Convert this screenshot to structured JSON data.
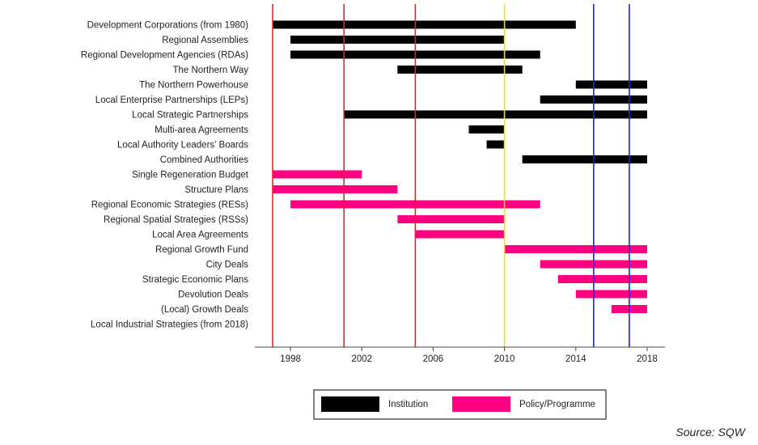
{
  "chart_data": {
    "type": "gantt",
    "xlim": [
      1996,
      2019
    ],
    "x_ticks": [
      1998,
      2002,
      2006,
      2010,
      2014,
      2018
    ],
    "grid": false,
    "legend_position": "bottom-center",
    "categories": [
      "Development Corporations (from 1980)",
      "Regional Assemblies",
      "Regional Development Agencies (RDAs)",
      "The Northern Way",
      "The Northern Powerhouse",
      "Local Enterprise Partnerships (LEPs)",
      "Local Strategic Partnerships",
      "Multi-area Agreements",
      "Local Authority Leaders' Boards",
      "Combined Authorities",
      "Single Regeneration Budget",
      "Structure Plans",
      "Regional Economic Strategies (RESs)",
      "Regional Spatial Strategies (RSSs)",
      "Local Area Agreements",
      "Regional Growth Fund ",
      "City Deals",
      "Strategic Economic Plans",
      "Devolution Deals",
      "(Local) Growth Deals",
      "Local Industrial Strategies (from 2018)"
    ],
    "bars": [
      {
        "start": 1997,
        "end": 2014,
        "type": "institution"
      },
      {
        "start": 1998,
        "end": 2010,
        "type": "institution"
      },
      {
        "start": 1998,
        "end": 2012,
        "type": "institution"
      },
      {
        "start": 2004,
        "end": 2011,
        "type": "institution"
      },
      {
        "start": 2014,
        "end": 2018,
        "type": "institution"
      },
      {
        "start": 2012,
        "end": 2018,
        "type": "institution"
      },
      {
        "start": 2001,
        "end": 2018,
        "type": "institution"
      },
      {
        "start": 2008,
        "end": 2010,
        "type": "institution"
      },
      {
        "start": 2009,
        "end": 2010,
        "type": "institution"
      },
      {
        "start": 2011,
        "end": 2018,
        "type": "institution"
      },
      {
        "start": 1997,
        "end": 2002,
        "type": "policy"
      },
      {
        "start": 1997,
        "end": 2004,
        "type": "policy"
      },
      {
        "start": 1998,
        "end": 2012,
        "type": "policy"
      },
      {
        "start": 2004,
        "end": 2010,
        "type": "policy"
      },
      {
        "start": 2005,
        "end": 2010,
        "type": "policy"
      },
      {
        "start": 2010,
        "end": 2018,
        "type": "policy"
      },
      {
        "start": 2012,
        "end": 2018,
        "type": "policy"
      },
      {
        "start": 2013,
        "end": 2018,
        "type": "policy"
      },
      {
        "start": 2014,
        "end": 2018,
        "type": "policy"
      },
      {
        "start": 2016,
        "end": 2018,
        "type": "policy"
      },
      null
    ],
    "vertical_lines": [
      {
        "x": 1997,
        "color": "#e8202a"
      },
      {
        "x": 2001,
        "color": "#e8202a"
      },
      {
        "x": 2005,
        "color": "#e8202a"
      },
      {
        "x": 2010,
        "color": "#f2e600"
      },
      {
        "x": 2015,
        "color": "#1a22e0"
      },
      {
        "x": 2017,
        "color": "#1a22e0"
      }
    ],
    "legend": [
      {
        "label": "Institution",
        "color": "#000000"
      },
      {
        "label": "Policy/Programme",
        "color": "#ff0080"
      }
    ],
    "colors": {
      "institution": "#000000",
      "policy": "#ff0080",
      "axis": "#444444"
    },
    "source": "Source: SQW"
  }
}
